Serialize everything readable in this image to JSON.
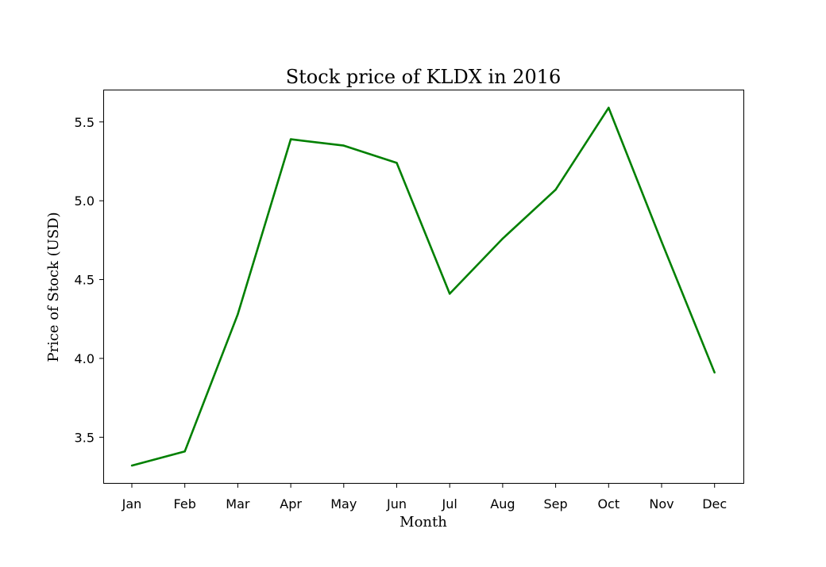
{
  "chart_data": {
    "type": "line",
    "title": "Stock price of KLDX in 2016",
    "xlabel": "Month",
    "ylabel": "Price of Stock (USD)",
    "categories": [
      "Jan",
      "Feb",
      "Mar",
      "Apr",
      "May",
      "Jun",
      "Jul",
      "Aug",
      "Sep",
      "Oct",
      "Nov",
      "Dec"
    ],
    "series": [
      {
        "values": [
          3.32,
          3.41,
          4.28,
          5.39,
          5.35,
          5.24,
          4.41,
          4.76,
          5.07,
          5.59,
          4.74,
          3.91
        ],
        "color": "#008000"
      }
    ],
    "ylim": [
      3.21,
      5.7
    ],
    "yticks": [
      3.5,
      4.0,
      4.5,
      5.0,
      5.5
    ],
    "ytick_labels": [
      "3.5",
      "4.0",
      "4.5",
      "5.0",
      "5.5"
    ],
    "grid": false,
    "legend": "none"
  }
}
